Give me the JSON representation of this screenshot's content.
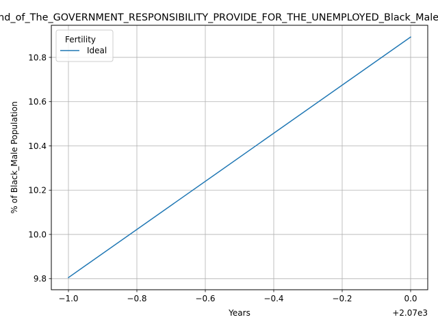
{
  "chart_data": {
    "type": "line",
    "title": "Trend_of_The_GOVERNMENT_RESPONSIBILITY_PROVIDE_FOR_THE_UNEMPLOYED_Black_Male_Population",
    "xlabel": "Years",
    "ylabel": "% of Black_Male Population",
    "x_offset_label": "+2.07e3",
    "xlim": [
      -1.05,
      0.05
    ],
    "ylim": [
      9.75,
      10.945
    ],
    "x_ticks": [
      -1.0,
      -0.8,
      -0.6,
      -0.4,
      -0.2,
      0.0
    ],
    "x_tick_labels": [
      "−1.0",
      "−0.8",
      "−0.6",
      "−0.4",
      "−0.2",
      "0.0"
    ],
    "y_ticks": [
      9.8,
      10.0,
      10.2,
      10.4,
      10.6,
      10.8
    ],
    "y_tick_labels": [
      "9.8",
      "10.0",
      "10.2",
      "10.4",
      "10.6",
      "10.8"
    ],
    "grid": true,
    "legend": {
      "title": "Fertility",
      "position": "top-left"
    },
    "series": [
      {
        "name": "Ideal",
        "color": "#1f77b4",
        "x": [
          -1.0,
          0.0
        ],
        "y": [
          9.805,
          10.892
        ]
      }
    ]
  }
}
